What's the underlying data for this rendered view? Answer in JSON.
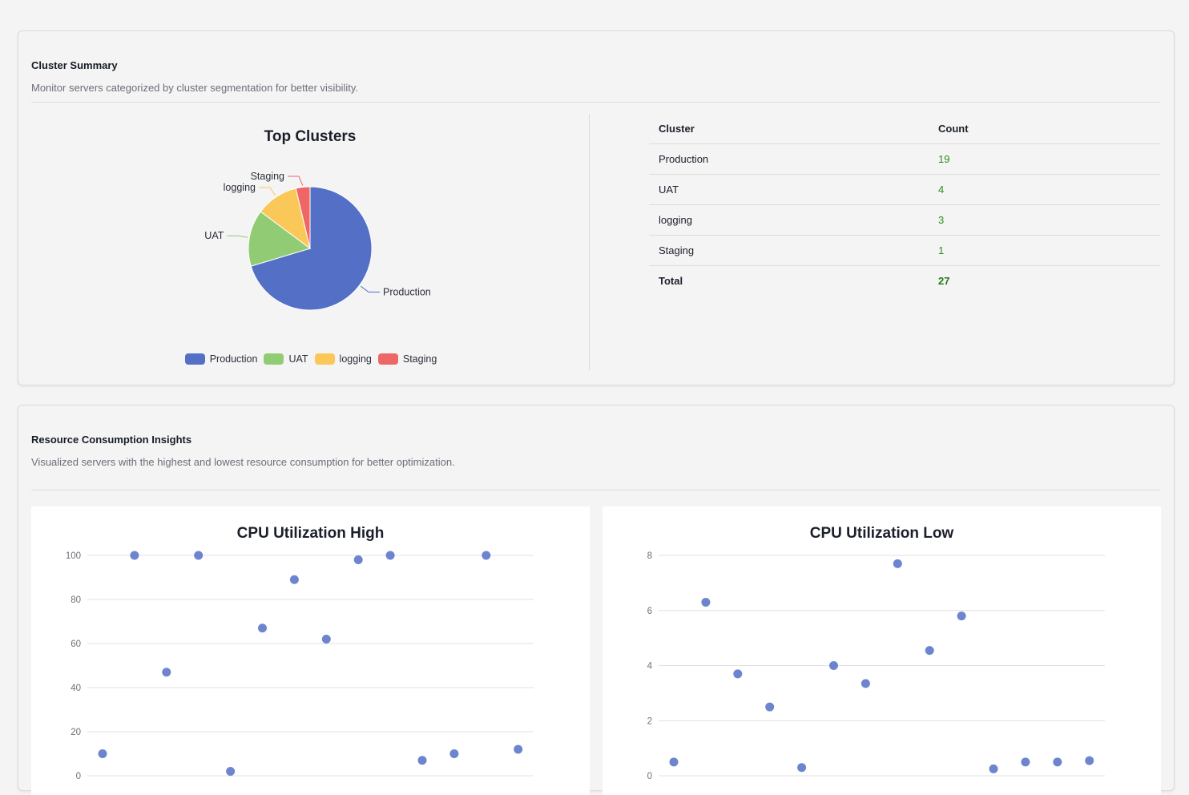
{
  "cluster_summary": {
    "title": "Cluster Summary",
    "description": "Monitor servers categorized by cluster segmentation for better visibility.",
    "table": {
      "headers": [
        "Cluster",
        "Count"
      ],
      "rows": [
        {
          "cluster": "Production",
          "count": "19"
        },
        {
          "cluster": "UAT",
          "count": "4"
        },
        {
          "cluster": "logging",
          "count": "3"
        },
        {
          "cluster": "Staging",
          "count": "1"
        }
      ],
      "total_label": "Total",
      "total_value": "27"
    }
  },
  "resource_insights": {
    "title": "Resource Consumption Insights",
    "description": "Visualized servers with the highest and lowest resource consumption for better optimization."
  },
  "colors": {
    "production": "#5470c6",
    "uat": "#91cc75",
    "logging": "#fac858",
    "staging": "#ee6666",
    "count_text": "#2e8b1e"
  },
  "chart_data": [
    {
      "type": "pie",
      "title": "Top Clusters",
      "categories": [
        "Production",
        "UAT",
        "logging",
        "Staging"
      ],
      "values": [
        19,
        4,
        3,
        1
      ],
      "colors": [
        "#5470c6",
        "#91cc75",
        "#fac858",
        "#ee6666"
      ],
      "legend": "bottom"
    },
    {
      "type": "scatter",
      "title": "CPU Utilization High",
      "y": [
        10,
        100,
        47,
        100,
        2,
        67,
        89,
        62,
        98,
        100,
        7,
        10,
        100,
        12
      ],
      "ylim": [
        0,
        100
      ],
      "yticks": [
        0,
        20,
        40,
        60,
        80,
        100
      ],
      "grid": true
    },
    {
      "type": "scatter",
      "title": "CPU Utilization Low",
      "y": [
        0.5,
        6.3,
        3.7,
        2.5,
        0.3,
        4,
        3.35,
        7.7,
        4.55,
        5.8,
        0.25,
        0.5,
        0.5,
        0.55
      ],
      "ylim": [
        0,
        8
      ],
      "yticks": [
        0,
        2,
        4,
        6,
        8
      ],
      "grid": true
    }
  ]
}
